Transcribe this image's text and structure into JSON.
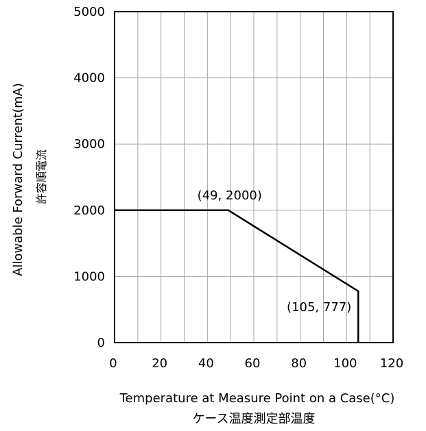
{
  "chart_data": {
    "type": "line",
    "title": "",
    "xlabel": "Temperature at Measure Point on a Case(°C)",
    "xlabel_sub": "ケース温度測定部温度",
    "ylabel": "Allowable Forward Current(mA)",
    "ylabel_sub": "許容順電流",
    "xlim": [
      0,
      120
    ],
    "ylim": [
      0,
      5000
    ],
    "x_ticks": [
      0,
      20,
      40,
      60,
      80,
      100,
      120
    ],
    "y_ticks": [
      0,
      1000,
      2000,
      3000,
      4000,
      5000
    ],
    "x_minor_grid_step": 10,
    "grid": true,
    "legend": "none",
    "series": [
      {
        "points": [
          {
            "x": 0,
            "y": 2000
          },
          {
            "x": 49,
            "y": 2000
          },
          {
            "x": 105,
            "y": 777
          },
          {
            "x": 105,
            "y": 0
          }
        ],
        "color": "#000000"
      }
    ],
    "annotations": [
      {
        "text": "(49, 2000)",
        "x": 49,
        "y": 2000
      },
      {
        "text": "(105, 777)",
        "x": 105,
        "y": 777
      }
    ]
  }
}
